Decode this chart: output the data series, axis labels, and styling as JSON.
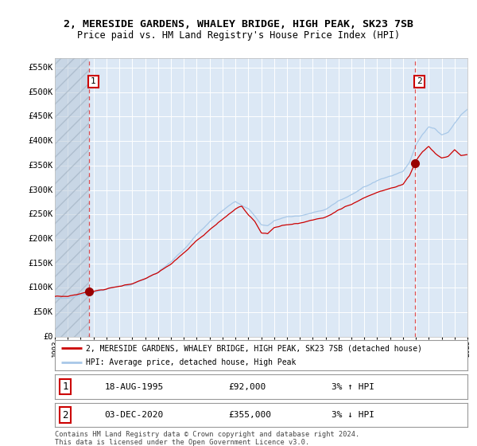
{
  "title_line1": "2, MERESIDE GARDENS, WHALEY BRIDGE, HIGH PEAK, SK23 7SB",
  "title_line2": "Price paid vs. HM Land Registry's House Price Index (HPI)",
  "ylim": [
    0,
    570000
  ],
  "yticks": [
    0,
    50000,
    100000,
    150000,
    200000,
    250000,
    300000,
    350000,
    400000,
    450000,
    500000,
    550000
  ],
  "ytick_labels": [
    "£0",
    "£50K",
    "£100K",
    "£150K",
    "£200K",
    "£250K",
    "£300K",
    "£350K",
    "£400K",
    "£450K",
    "£500K",
    "£550K"
  ],
  "year_start": 1993,
  "year_end": 2025,
  "hpi_color": "#A8C8E8",
  "price_color": "#CC0000",
  "marker_color": "#990000",
  "point1_year": 1995.625,
  "point1_value": 92000,
  "point2_year": 2020.917,
  "point2_value": 355000,
  "legend_label1": "2, MERESIDE GARDENS, WHALEY BRIDGE, HIGH PEAK, SK23 7SB (detached house)",
  "legend_label2": "HPI: Average price, detached house, High Peak",
  "table_row1_num": "1",
  "table_row1_date": "18-AUG-1995",
  "table_row1_price": "£92,000",
  "table_row1_hpi": "3% ↑ HPI",
  "table_row2_num": "2",
  "table_row2_date": "03-DEC-2020",
  "table_row2_price": "£355,000",
  "table_row2_hpi": "3% ↓ HPI",
  "footnote": "Contains HM Land Registry data © Crown copyright and database right 2024.\nThis data is licensed under the Open Government Licence v3.0.",
  "bg_color": "#FFFFFF",
  "plot_bg_color": "#DCE8F5",
  "grid_color": "#FFFFFF",
  "vline_color": "#DD3333",
  "annotation_box_color": "#CC0000",
  "hatch_color": "#B8C8D8",
  "key_years_hpi": [
    1993,
    1994,
    1995,
    1996,
    1997,
    1998,
    1999,
    2000,
    2001,
    2002,
    2003,
    2004,
    2005,
    2006,
    2007,
    2008,
    2008.5,
    2009,
    2009.5,
    2010,
    2011,
    2012,
    2013,
    2014,
    2015,
    2016,
    2017,
    2018,
    2019,
    2020,
    2020.5,
    2021,
    2021.5,
    2022,
    2022.5,
    2023,
    2023.5,
    2024,
    2024.5,
    2025
  ],
  "key_vals_hpi": [
    78000,
    80000,
    86000,
    91000,
    97000,
    103000,
    108000,
    120000,
    133000,
    155000,
    182000,
    215000,
    240000,
    265000,
    285000,
    270000,
    255000,
    235000,
    232000,
    242000,
    248000,
    250000,
    255000,
    262000,
    278000,
    292000,
    308000,
    320000,
    330000,
    340000,
    358000,
    395000,
    415000,
    430000,
    425000,
    412000,
    418000,
    438000,
    455000,
    465000
  ],
  "key_years_price": [
    1993,
    1994,
    1995,
    1996,
    1997,
    1998,
    1999,
    2000,
    2001,
    2002,
    2003,
    2004,
    2005,
    2006,
    2007,
    2007.5,
    2008,
    2008.5,
    2009,
    2009.5,
    2010,
    2011,
    2012,
    2013,
    2014,
    2015,
    2016,
    2017,
    2018,
    2019,
    2020,
    2020.5,
    2021,
    2021.5,
    2022,
    2022.5,
    2023,
    2023.5,
    2024,
    2024.5,
    2025
  ],
  "key_vals_price": [
    80000,
    82000,
    88000,
    93000,
    99000,
    105000,
    110000,
    122000,
    136000,
    158000,
    185000,
    218000,
    242000,
    268000,
    295000,
    302000,
    278000,
    262000,
    232000,
    230000,
    244000,
    250000,
    252000,
    258000,
    265000,
    280000,
    294000,
    310000,
    322000,
    332000,
    342000,
    362000,
    398000,
    420000,
    432000,
    415000,
    404000,
    408000,
    425000,
    408000,
    410000
  ]
}
